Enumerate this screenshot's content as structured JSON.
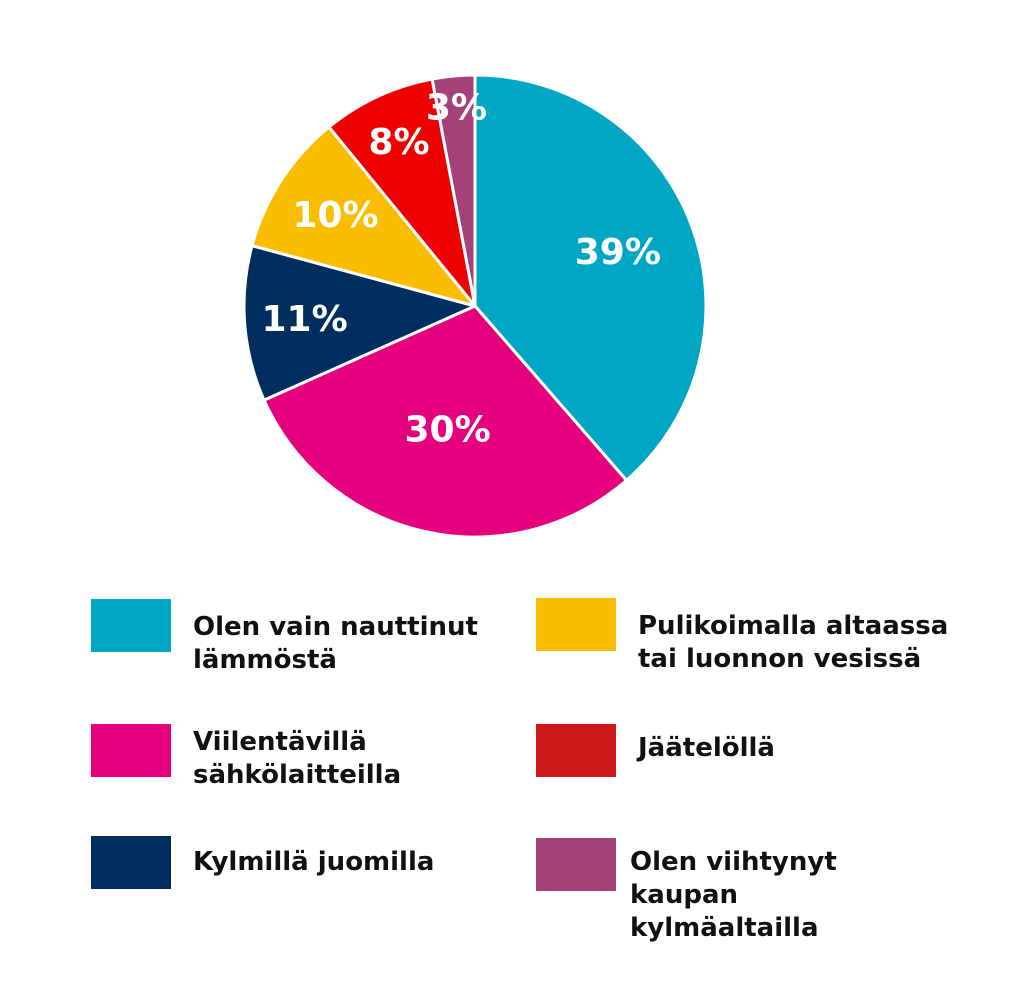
{
  "chart_data": {
    "type": "pie",
    "title": "",
    "slices": [
      {
        "label": "Olen vain nauttinut\nlämmöstä",
        "value": 39,
        "value_label": "39%",
        "color": "#00a7c4"
      },
      {
        "label": "Viilentävillä\nsähkölaitteilla",
        "value": 30,
        "value_label": "30%",
        "color": "#e5007e"
      },
      {
        "label": "Kylmillä juomilla",
        "value": 11,
        "value_label": "11%",
        "color": "#002f5f"
      },
      {
        "label": "Pulikoimalla altaassa\ntai luonnon vesissä",
        "value": 10,
        "value_label": "10%",
        "color": "#fbbd00"
      },
      {
        "label": "Jäätelöllä",
        "value": 8,
        "value_label": "8%",
        "color": "#ef0000"
      },
      {
        "label": "Olen viihtynyt kaupan\nkylmäaltailla",
        "value": 3,
        "value_label": "3%",
        "color": "#a6427a"
      }
    ],
    "legend_colors": [
      "#00a7c4",
      "#e5007e",
      "#002f5f",
      "#fbbd00",
      "#cc1a1a",
      "#a6427a"
    ],
    "start_angle": "12 o'clock",
    "direction": "clockwise",
    "legend_position": "bottom"
  }
}
